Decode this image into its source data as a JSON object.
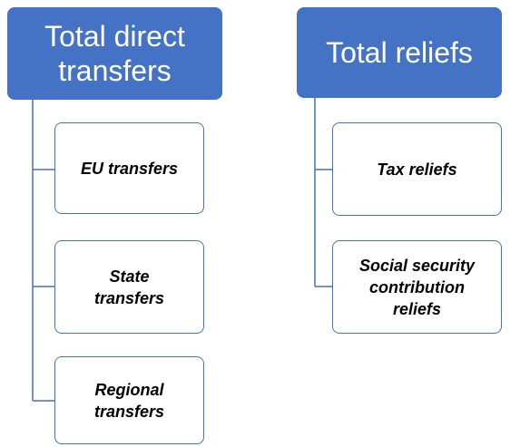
{
  "nodes": [
    {
      "label": "Total direct transfers",
      "children": [
        {
          "label": "EU transfers"
        },
        {
          "label": "State transfers"
        },
        {
          "label": "Regional transfers"
        }
      ]
    },
    {
      "label": "Total reliefs",
      "children": [
        {
          "label": "Tax reliefs"
        },
        {
          "label": "Social security contribution reliefs"
        }
      ]
    }
  ]
}
